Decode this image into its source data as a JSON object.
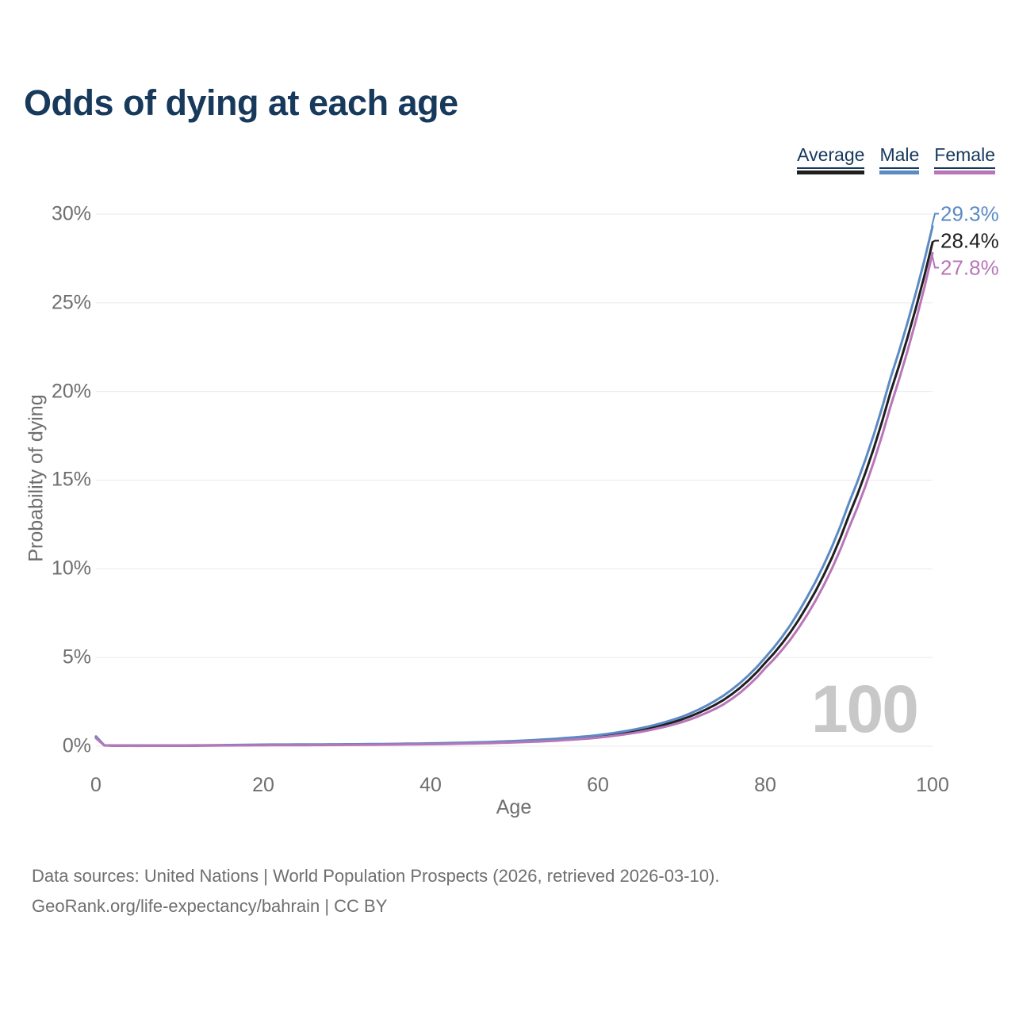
{
  "colors": {
    "title": "#17395c",
    "axis_text": "#6e6e6e",
    "grid": "#eaeaea",
    "watermark": "#c8c8c8",
    "footer_text": "#6f6f6f",
    "legend_underline": "#17395c"
  },
  "chart_data": {
    "type": "line",
    "title": "Odds of dying at each age",
    "xlabel": "Age",
    "ylabel": "Probability of dying",
    "xlim": [
      0,
      100
    ],
    "ylim": [
      0,
      30
    ],
    "grid": true,
    "legend_position": "top-right",
    "watermark": "100",
    "x": [
      0,
      1,
      2,
      5,
      10,
      15,
      20,
      25,
      30,
      35,
      40,
      45,
      50,
      55,
      60,
      65,
      70,
      75,
      80,
      85,
      90,
      95,
      100
    ],
    "series": [
      {
        "name": "Average",
        "color": "#1f1f1f",
        "values": [
          0.5,
          0.05,
          0.03,
          0.03,
          0.03,
          0.05,
          0.07,
          0.08,
          0.09,
          0.1,
          0.13,
          0.18,
          0.25,
          0.37,
          0.55,
          0.9,
          1.5,
          2.6,
          4.7,
          7.9,
          13.0,
          20.0,
          28.4
        ]
      },
      {
        "name": "Male",
        "color": "#5b8ac5",
        "values": [
          0.55,
          0.05,
          0.04,
          0.03,
          0.04,
          0.06,
          0.09,
          0.1,
          0.11,
          0.13,
          0.16,
          0.21,
          0.29,
          0.42,
          0.62,
          1.0,
          1.65,
          2.85,
          5.0,
          8.4,
          13.7,
          20.8,
          29.3
        ]
      },
      {
        "name": "Female",
        "color": "#b876b8",
        "values": [
          0.45,
          0.04,
          0.03,
          0.02,
          0.03,
          0.04,
          0.05,
          0.06,
          0.07,
          0.09,
          0.11,
          0.15,
          0.21,
          0.31,
          0.48,
          0.8,
          1.35,
          2.35,
          4.4,
          7.4,
          12.3,
          19.2,
          27.8
        ]
      }
    ],
    "xticks": {
      "values": [
        0,
        20,
        40,
        60,
        80,
        100
      ],
      "labels": [
        "0",
        "20",
        "40",
        "60",
        "80",
        "100"
      ]
    },
    "yticks": {
      "values": [
        0,
        5,
        10,
        15,
        20,
        25,
        30
      ],
      "labels": [
        "0%",
        "5%",
        "10%",
        "15%",
        "20%",
        "25%",
        "30%"
      ]
    },
    "end_labels": [
      {
        "series": "Male",
        "text": "29.3%",
        "value": 29.3
      },
      {
        "series": "Average",
        "text": "28.4%",
        "value": 28.4
      },
      {
        "series": "Female",
        "text": "27.8%",
        "value": 27.8
      }
    ]
  },
  "footer": {
    "line1": "Data sources: United Nations | World Population Prospects (2026, retrieved 2026-03-10).",
    "line2": "GeoRank.org/life-expectancy/bahrain | CC BY"
  }
}
